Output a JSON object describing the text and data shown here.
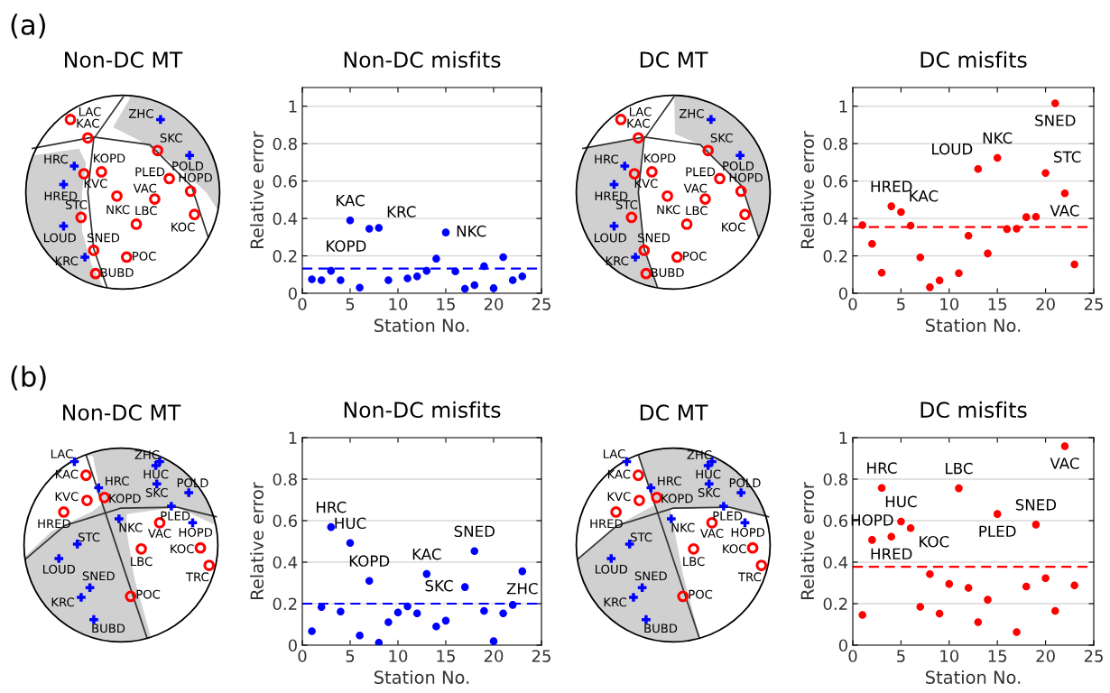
{
  "chart_data": [
    {
      "type": "other",
      "title": "Non-DC MT",
      "annotations": [
        "(a)",
        "LAC",
        "KAC",
        "ZHC",
        "SKC",
        "POLD",
        "HRC",
        "KVC",
        "KOPD",
        "PLED",
        "HOPD",
        "HRED",
        "VAC",
        "NKC",
        "STC",
        "LBC",
        "KOC",
        "LOUD",
        "SNED",
        "KRC",
        "POC",
        "BUBD"
      ]
    },
    {
      "type": "scatter",
      "title": "Non-DC misfits",
      "xlabel": "Station No.",
      "ylabel": "Relative error",
      "xlim": [
        0,
        25
      ],
      "ylim": [
        0,
        1.1
      ],
      "xticks": [
        0,
        5,
        10,
        15,
        20,
        25
      ],
      "yticks": [
        0,
        0.2,
        0.4,
        0.6,
        0.8,
        1
      ],
      "grid": "y",
      "marker": "circle",
      "series": [
        {
          "color": "#0000ff",
          "x": [
            1,
            2,
            3,
            4,
            5,
            6,
            7,
            8,
            9,
            11,
            12,
            13,
            14,
            15,
            16,
            17,
            18,
            19,
            20,
            21,
            22,
            23
          ],
          "values": [
            0.075,
            0.07,
            0.12,
            0.07,
            0.39,
            0.03,
            0.345,
            0.35,
            0.07,
            0.08,
            0.09,
            0.12,
            0.185,
            0.325,
            0.117,
            0.024,
            0.043,
            0.145,
            0.027,
            0.193,
            0.07,
            0.09
          ]
        }
      ],
      "ref_lines": [
        {
          "axis": "y",
          "value": 0.132,
          "color": "#0000ff",
          "line_style": "dashed"
        }
      ],
      "annotations": [
        {
          "text": "KAC",
          "x": 5,
          "y": 0.39
        },
        {
          "text": "KOPD",
          "x": 7,
          "y": 0.345
        },
        {
          "text": "KRC",
          "x": 8,
          "y": 0.35
        },
        {
          "text": "NKC",
          "x": 15,
          "y": 0.325
        }
      ]
    },
    {
      "type": "other",
      "title": "DC MT",
      "annotations": [
        "LAC",
        "KAC",
        "ZHC",
        "SKC",
        "POLD",
        "HRC",
        "KVC",
        "KOPD",
        "PLED",
        "HOPD",
        "HRED",
        "VAC",
        "NKC",
        "STC",
        "LBC",
        "KOC",
        "LOUD",
        "SNED",
        "KRC",
        "POC",
        "BUBD"
      ]
    },
    {
      "type": "scatter",
      "title": "DC misfits",
      "xlabel": "Station No.",
      "ylabel": "Relative error",
      "xlim": [
        0,
        25
      ],
      "ylim": [
        0,
        1.1
      ],
      "xticks": [
        0,
        5,
        10,
        15,
        20,
        25
      ],
      "yticks": [
        0,
        0.2,
        0.4,
        0.6,
        0.8,
        1
      ],
      "grid": "y",
      "marker": "circle",
      "series": [
        {
          "color": "#ff0000",
          "x": [
            1,
            2,
            3,
            4,
            5,
            6,
            7,
            8,
            9,
            11,
            12,
            13,
            14,
            15,
            16,
            17,
            18,
            19,
            20,
            21,
            22,
            23
          ],
          "values": [
            0.364,
            0.264,
            0.11,
            0.465,
            0.434,
            0.362,
            0.192,
            0.032,
            0.069,
            0.107,
            0.308,
            0.665,
            0.213,
            0.724,
            0.343,
            0.345,
            0.407,
            0.409,
            0.643,
            1.016,
            0.534,
            0.154
          ]
        }
      ],
      "ref_lines": [
        {
          "axis": "y",
          "value": 0.354,
          "color": "#ff0000",
          "line_style": "dashed"
        }
      ],
      "annotations": [
        {
          "text": "HRED",
          "x": 4,
          "y": 0.465
        },
        {
          "text": "KAC",
          "x": 5,
          "y": 0.434
        },
        {
          "text": "LOUD",
          "x": 13,
          "y": 0.665
        },
        {
          "text": "NKC",
          "x": 15,
          "y": 0.724
        },
        {
          "text": "SNED",
          "x": 21,
          "y": 1.016
        },
        {
          "text": "STC",
          "x": 20,
          "y": 0.643
        },
        {
          "text": "VAC",
          "x": 22,
          "y": 0.534
        }
      ]
    },
    {
      "type": "other",
      "title": "Non-DC MT",
      "annotations": [
        "(b)",
        "LAC",
        "KAC",
        "HRC",
        "KVC",
        "KOPD",
        "HRED",
        "ZHC",
        "HUC",
        "SKC",
        "POLD",
        "PLED",
        "NKC",
        "VAC",
        "HOPD",
        "STC",
        "LBC",
        "KOC",
        "TRC",
        "LOUD",
        "SNED",
        "KRC",
        "POC",
        "BUBD"
      ]
    },
    {
      "type": "scatter",
      "title": "Non-DC misfits",
      "xlabel": "Station No.",
      "ylabel": "Relative error",
      "xlim": [
        0,
        25
      ],
      "ylim": [
        0,
        1
      ],
      "xticks": [
        0,
        5,
        10,
        15,
        20,
        25
      ],
      "yticks": [
        0,
        0.2,
        0.4,
        0.6,
        0.8,
        1
      ],
      "grid": "y",
      "marker": "circle",
      "series": [
        {
          "color": "#0000ff",
          "x": [
            1,
            2,
            3,
            4,
            5,
            6,
            7,
            8,
            9,
            10,
            11,
            12,
            13,
            14,
            15,
            17,
            18,
            19,
            20,
            21,
            22,
            23
          ],
          "values": [
            0.067,
            0.184,
            0.569,
            0.162,
            0.492,
            0.047,
            0.31,
            0.012,
            0.111,
            0.158,
            0.187,
            0.153,
            0.343,
            0.09,
            0.118,
            0.28,
            0.453,
            0.165,
            0.019,
            0.153,
            0.194,
            0.356
          ]
        }
      ],
      "ref_lines": [
        {
          "axis": "y",
          "value": 0.2,
          "color": "#0000ff",
          "line_style": "dashed"
        }
      ],
      "annotations": [
        {
          "text": "HRC",
          "x": 3,
          "y": 0.569
        },
        {
          "text": "HUC",
          "x": 5,
          "y": 0.492
        },
        {
          "text": "KOPD",
          "x": 7,
          "y": 0.31
        },
        {
          "text": "KAC",
          "x": 13,
          "y": 0.343
        },
        {
          "text": "SKC",
          "x": 17,
          "y": 0.28
        },
        {
          "text": "SNED",
          "x": 18,
          "y": 0.453
        },
        {
          "text": "ZHC",
          "x": 23,
          "y": 0.356
        }
      ]
    },
    {
      "type": "other",
      "title": "DC MT",
      "annotations": [
        "LAC",
        "KAC",
        "HRC",
        "KVC",
        "KOPD",
        "HRED",
        "ZHC",
        "HUC",
        "SKC",
        "POLD",
        "PLED",
        "NKC",
        "VAC",
        "HOPD",
        "STC",
        "LBC",
        "KOC",
        "TRC",
        "LOUD",
        "SNED",
        "KRC",
        "POC",
        "BUBD"
      ]
    },
    {
      "type": "scatter",
      "title": "DC misfits",
      "xlabel": "Station No.",
      "ylabel": "Relative error",
      "xlim": [
        0,
        25
      ],
      "ylim": [
        0,
        1
      ],
      "xticks": [
        0,
        5,
        10,
        15,
        20,
        25
      ],
      "yticks": [
        0,
        0.2,
        0.4,
        0.6,
        0.8,
        1
      ],
      "grid": "y",
      "marker": "circle",
      "series": [
        {
          "color": "#ff0000",
          "x": [
            1,
            2,
            3,
            4,
            5,
            6,
            7,
            8,
            9,
            10,
            11,
            12,
            13,
            14,
            15,
            17,
            18,
            19,
            20,
            21,
            22,
            23
          ],
          "values": [
            0.146,
            0.507,
            0.758,
            0.523,
            0.596,
            0.564,
            0.185,
            0.342,
            0.152,
            0.295,
            0.756,
            0.276,
            0.111,
            0.219,
            0.632,
            0.063,
            0.283,
            0.581,
            0.323,
            0.165,
            0.959,
            0.288
          ]
        }
      ],
      "ref_lines": [
        {
          "axis": "y",
          "value": 0.378,
          "color": "#ff0000",
          "line_style": "dashed"
        }
      ],
      "annotations": [
        {
          "text": "HOPD",
          "x": 2,
          "y": 0.507
        },
        {
          "text": "HRC",
          "x": 3,
          "y": 0.758
        },
        {
          "text": "HRED",
          "x": 4,
          "y": 0.523
        },
        {
          "text": "HUC",
          "x": 5,
          "y": 0.596
        },
        {
          "text": "KOC",
          "x": 6,
          "y": 0.564
        },
        {
          "text": "LBC",
          "x": 11,
          "y": 0.756
        },
        {
          "text": "PLED",
          "x": 15,
          "y": 0.632
        },
        {
          "text": "SNED",
          "x": 19,
          "y": 0.581
        },
        {
          "text": "VAC",
          "x": 22,
          "y": 0.959
        }
      ]
    }
  ]
}
